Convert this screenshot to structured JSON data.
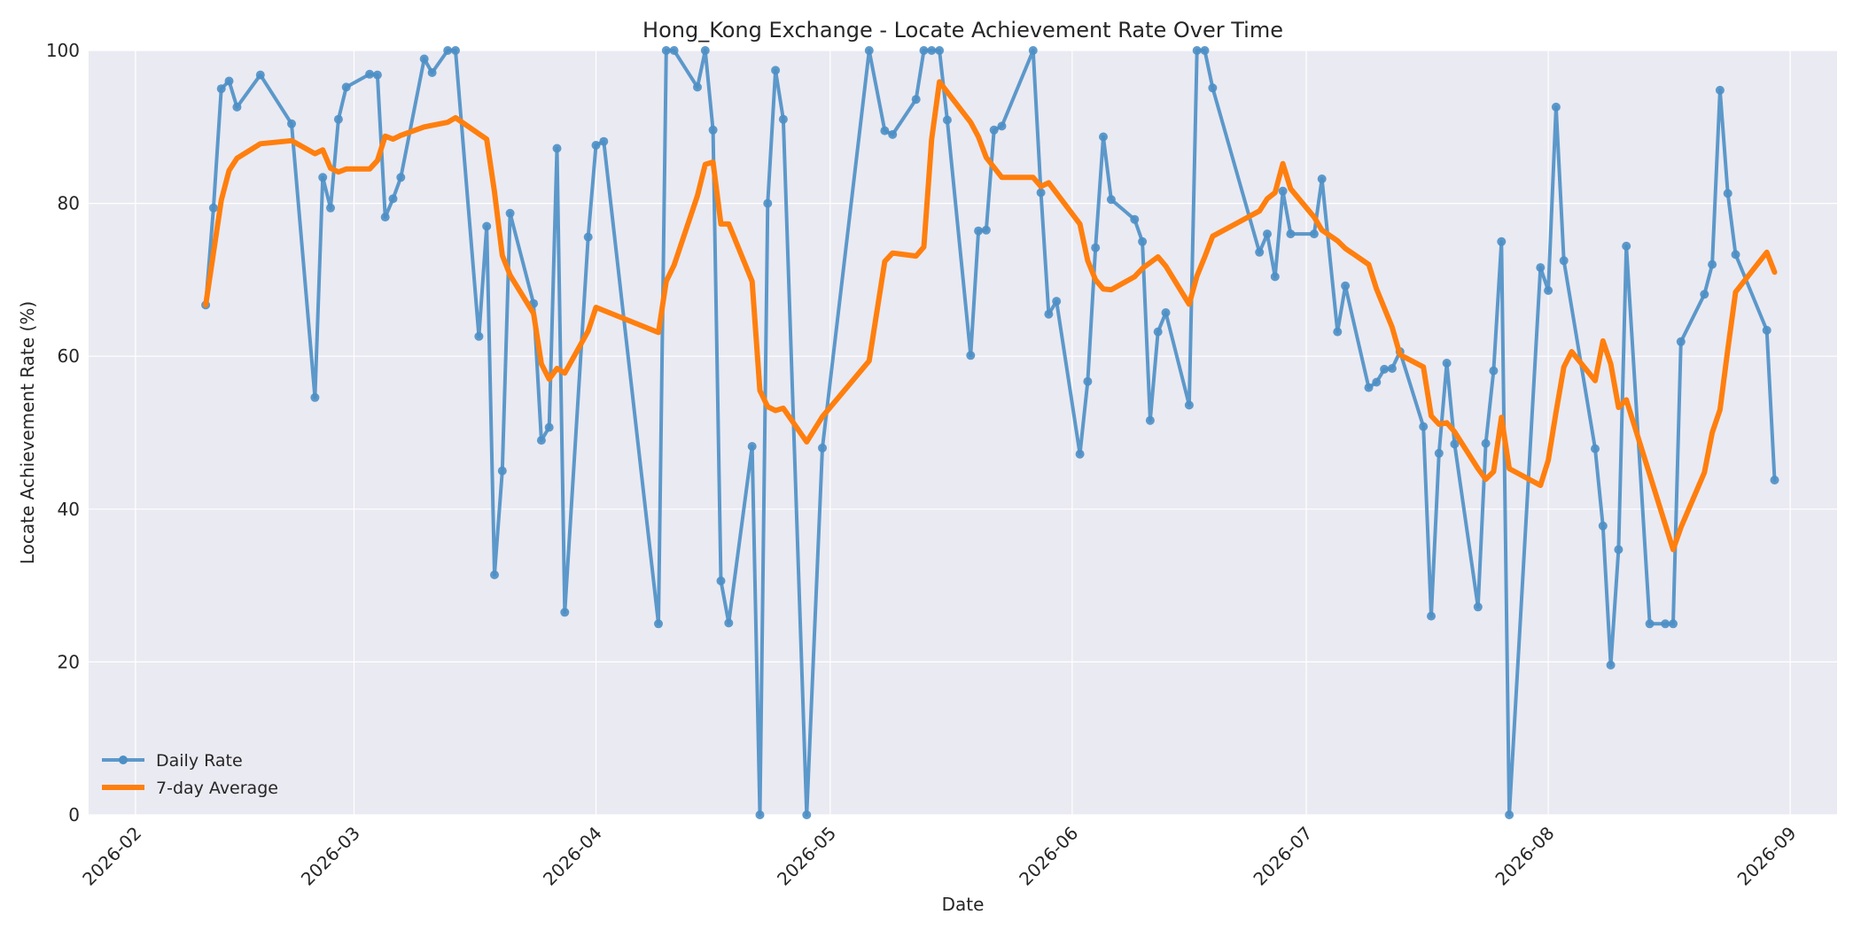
{
  "chart_data": {
    "type": "line",
    "title": "Hong_Kong Exchange - Locate Achievement Rate Over Time",
    "xlabel": "Date",
    "ylabel": "Locate Achievement Rate (%)",
    "xlim": [
      "2026-02-01",
      "2026-09-01"
    ],
    "ylim": [
      0,
      100
    ],
    "x_ticks": [
      "2026-02",
      "2026-03",
      "2026-04",
      "2026-05",
      "2026-06",
      "2026-07",
      "2026-08",
      "2026-09"
    ],
    "y_ticks": [
      0,
      20,
      40,
      60,
      80,
      100
    ],
    "grid": true,
    "legend_position": "lower-left",
    "colors": {
      "daily": "#4c8fc5",
      "average": "#ff7f0e",
      "plot_bg": "#eaeaf2",
      "grid": "#ffffff"
    },
    "series": [
      {
        "name": "Daily Rate",
        "markers": true,
        "points": [
          [
            "2026-02-10",
            66.7
          ],
          [
            "2026-02-11",
            79.4
          ],
          [
            "2026-02-12",
            95.0
          ],
          [
            "2026-02-13",
            96.0
          ],
          [
            "2026-02-14",
            92.6
          ],
          [
            "2026-02-17",
            96.8
          ],
          [
            "2026-02-21",
            90.4
          ],
          [
            "2026-02-24",
            54.6
          ],
          [
            "2026-02-25",
            83.4
          ],
          [
            "2026-02-26",
            79.4
          ],
          [
            "2026-02-27",
            91.0
          ],
          [
            "2026-02-28",
            95.2
          ],
          [
            "2026-03-03",
            96.9
          ],
          [
            "2026-03-04",
            96.8
          ],
          [
            "2026-03-05",
            78.2
          ],
          [
            "2026-03-06",
            80.6
          ],
          [
            "2026-03-07",
            83.4
          ],
          [
            "2026-03-10",
            98.9
          ],
          [
            "2026-03-11",
            97.1
          ],
          [
            "2026-03-13",
            100.0
          ],
          [
            "2026-03-14",
            100.0
          ],
          [
            "2026-03-17",
            62.6
          ],
          [
            "2026-03-18",
            77.0
          ],
          [
            "2026-03-19",
            31.4
          ],
          [
            "2026-03-20",
            45.0
          ],
          [
            "2026-03-21",
            78.7
          ],
          [
            "2026-03-24",
            66.9
          ],
          [
            "2026-03-25",
            49.0
          ],
          [
            "2026-03-26",
            50.7
          ],
          [
            "2026-03-27",
            87.2
          ],
          [
            "2026-03-28",
            26.5
          ],
          [
            "2026-03-31",
            75.6
          ],
          [
            "2026-04-01",
            87.6
          ],
          [
            "2026-04-02",
            88.1
          ],
          [
            "2026-04-09",
            25.0
          ],
          [
            "2026-04-10",
            100.0
          ],
          [
            "2026-04-11",
            100.0
          ],
          [
            "2026-04-14",
            95.2
          ],
          [
            "2026-04-15",
            100.0
          ],
          [
            "2026-04-16",
            89.6
          ],
          [
            "2026-04-17",
            30.6
          ],
          [
            "2026-04-18",
            25.1
          ],
          [
            "2026-04-21",
            48.2
          ],
          [
            "2026-04-22",
            0.0
          ],
          [
            "2026-04-23",
            80.0
          ],
          [
            "2026-04-24",
            97.4
          ],
          [
            "2026-04-25",
            91.0
          ],
          [
            "2026-04-28",
            0.0
          ],
          [
            "2026-04-30",
            48.0
          ],
          [
            "2026-05-06",
            100.0
          ],
          [
            "2026-05-08",
            89.5
          ],
          [
            "2026-05-09",
            89.0
          ],
          [
            "2026-05-12",
            93.6
          ],
          [
            "2026-05-13",
            100.0
          ],
          [
            "2026-05-14",
            100.0
          ],
          [
            "2026-05-15",
            100.0
          ],
          [
            "2026-05-16",
            90.9
          ],
          [
            "2026-05-19",
            60.1
          ],
          [
            "2026-05-20",
            76.4
          ],
          [
            "2026-05-21",
            76.5
          ],
          [
            "2026-05-22",
            89.6
          ],
          [
            "2026-05-23",
            90.1
          ],
          [
            "2026-05-27",
            100.0
          ],
          [
            "2026-05-28",
            81.4
          ],
          [
            "2026-05-29",
            65.5
          ],
          [
            "2026-05-30",
            67.2
          ],
          [
            "2026-06-02",
            47.2
          ],
          [
            "2026-06-03",
            56.7
          ],
          [
            "2026-06-04",
            74.2
          ],
          [
            "2026-06-05",
            88.7
          ],
          [
            "2026-06-06",
            80.5
          ],
          [
            "2026-06-09",
            77.9
          ],
          [
            "2026-06-10",
            75.0
          ],
          [
            "2026-06-11",
            51.6
          ],
          [
            "2026-06-12",
            63.2
          ],
          [
            "2026-06-13",
            65.7
          ],
          [
            "2026-06-16",
            53.6
          ],
          [
            "2026-06-17",
            100.0
          ],
          [
            "2026-06-18",
            100.0
          ],
          [
            "2026-06-19",
            95.1
          ],
          [
            "2026-06-25",
            73.6
          ],
          [
            "2026-06-26",
            76.0
          ],
          [
            "2026-06-27",
            70.4
          ],
          [
            "2026-06-28",
            81.6
          ],
          [
            "2026-06-29",
            76.0
          ],
          [
            "2026-07-02",
            76.0
          ],
          [
            "2026-07-03",
            83.2
          ],
          [
            "2026-07-05",
            63.2
          ],
          [
            "2026-07-06",
            69.2
          ],
          [
            "2026-07-09",
            55.9
          ],
          [
            "2026-07-10",
            56.6
          ],
          [
            "2026-07-11",
            58.3
          ],
          [
            "2026-07-12",
            58.4
          ],
          [
            "2026-07-13",
            60.6
          ],
          [
            "2026-07-16",
            50.8
          ],
          [
            "2026-07-17",
            26.0
          ],
          [
            "2026-07-18",
            47.3
          ],
          [
            "2026-07-19",
            59.1
          ],
          [
            "2026-07-20",
            48.5
          ],
          [
            "2026-07-23",
            27.2
          ],
          [
            "2026-07-24",
            48.6
          ],
          [
            "2026-07-25",
            58.1
          ],
          [
            "2026-07-26",
            75.0
          ],
          [
            "2026-07-27",
            0.0
          ],
          [
            "2026-07-31",
            71.6
          ],
          [
            "2026-08-01",
            68.6
          ],
          [
            "2026-08-02",
            92.6
          ],
          [
            "2026-08-03",
            72.5
          ],
          [
            "2026-08-07",
            47.9
          ],
          [
            "2026-08-08",
            37.8
          ],
          [
            "2026-08-09",
            19.6
          ],
          [
            "2026-08-10",
            34.7
          ],
          [
            "2026-08-11",
            74.4
          ],
          [
            "2026-08-14",
            25.0
          ],
          [
            "2026-08-16",
            25.0
          ],
          [
            "2026-08-17",
            25.0
          ],
          [
            "2026-08-18",
            61.9
          ],
          [
            "2026-08-21",
            68.1
          ],
          [
            "2026-08-22",
            72.0
          ],
          [
            "2026-08-23",
            94.8
          ],
          [
            "2026-08-24",
            81.3
          ],
          [
            "2026-08-25",
            73.3
          ],
          [
            "2026-08-29",
            63.4
          ],
          [
            "2026-08-30",
            43.8
          ]
        ]
      },
      {
        "name": "7-day Average",
        "markers": false,
        "points": [
          [
            "2026-02-10",
            66.7
          ],
          [
            "2026-02-12",
            80.4
          ],
          [
            "2026-02-13",
            84.3
          ],
          [
            "2026-02-14",
            85.9
          ],
          [
            "2026-02-17",
            87.8
          ],
          [
            "2026-02-21",
            88.2
          ],
          [
            "2026-02-24",
            86.5
          ],
          [
            "2026-02-25",
            87.0
          ],
          [
            "2026-02-26",
            84.6
          ],
          [
            "2026-02-27",
            84.1
          ],
          [
            "2026-02-28",
            84.5
          ],
          [
            "2026-03-03",
            84.5
          ],
          [
            "2026-03-04",
            85.6
          ],
          [
            "2026-03-05",
            88.8
          ],
          [
            "2026-03-06",
            88.4
          ],
          [
            "2026-03-07",
            88.9
          ],
          [
            "2026-03-10",
            90.0
          ],
          [
            "2026-03-13",
            90.6
          ],
          [
            "2026-03-14",
            91.2
          ],
          [
            "2026-03-17",
            89.1
          ],
          [
            "2026-03-18",
            88.4
          ],
          [
            "2026-03-19",
            81.5
          ],
          [
            "2026-03-20",
            73.2
          ],
          [
            "2026-03-21",
            70.6
          ],
          [
            "2026-03-24",
            65.6
          ],
          [
            "2026-03-25",
            59.0
          ],
          [
            "2026-03-26",
            57.0
          ],
          [
            "2026-03-27",
            58.4
          ],
          [
            "2026-03-28",
            57.8
          ],
          [
            "2026-03-31",
            63.3
          ],
          [
            "2026-04-01",
            66.4
          ],
          [
            "2026-04-09",
            63.1
          ],
          [
            "2026-04-10",
            69.8
          ],
          [
            "2026-04-11",
            71.9
          ],
          [
            "2026-04-14",
            81.0
          ],
          [
            "2026-04-15",
            85.1
          ],
          [
            "2026-04-16",
            85.4
          ],
          [
            "2026-04-17",
            77.3
          ],
          [
            "2026-04-18",
            77.3
          ],
          [
            "2026-04-21",
            69.8
          ],
          [
            "2026-04-22",
            55.5
          ],
          [
            "2026-04-23",
            53.4
          ],
          [
            "2026-04-24",
            52.9
          ],
          [
            "2026-04-25",
            53.2
          ],
          [
            "2026-04-28",
            48.8
          ],
          [
            "2026-04-30",
            52.1
          ],
          [
            "2026-05-06",
            59.4
          ],
          [
            "2026-05-08",
            72.4
          ],
          [
            "2026-05-09",
            73.5
          ],
          [
            "2026-05-12",
            73.1
          ],
          [
            "2026-05-13",
            74.3
          ],
          [
            "2026-05-14",
            88.4
          ],
          [
            "2026-05-15",
            95.9
          ],
          [
            "2026-05-19",
            90.6
          ],
          [
            "2026-05-20",
            88.7
          ],
          [
            "2026-05-21",
            86.0
          ],
          [
            "2026-05-23",
            83.4
          ],
          [
            "2026-05-27",
            83.4
          ],
          [
            "2026-05-28",
            82.2
          ],
          [
            "2026-05-29",
            82.7
          ],
          [
            "2026-06-02",
            77.3
          ],
          [
            "2026-06-03",
            72.5
          ],
          [
            "2026-06-04",
            70.0
          ],
          [
            "2026-06-05",
            68.8
          ],
          [
            "2026-06-06",
            68.7
          ],
          [
            "2026-06-09",
            70.4
          ],
          [
            "2026-06-10",
            71.5
          ],
          [
            "2026-06-12",
            73.0
          ],
          [
            "2026-06-13",
            71.8
          ],
          [
            "2026-06-16",
            66.8
          ],
          [
            "2026-06-17",
            70.5
          ],
          [
            "2026-06-18",
            73.0
          ],
          [
            "2026-06-19",
            75.7
          ],
          [
            "2026-06-25",
            79.0
          ],
          [
            "2026-06-26",
            80.6
          ],
          [
            "2026-06-27",
            81.4
          ],
          [
            "2026-06-28",
            85.2
          ],
          [
            "2026-06-29",
            81.9
          ],
          [
            "2026-07-02",
            78.2
          ],
          [
            "2026-07-03",
            76.5
          ],
          [
            "2026-07-05",
            75.1
          ],
          [
            "2026-07-06",
            74.1
          ],
          [
            "2026-07-09",
            72.0
          ],
          [
            "2026-07-10",
            68.8
          ],
          [
            "2026-07-12",
            63.8
          ],
          [
            "2026-07-13",
            60.2
          ],
          [
            "2026-07-16",
            58.6
          ],
          [
            "2026-07-17",
            52.2
          ],
          [
            "2026-07-18",
            51.1
          ],
          [
            "2026-07-19",
            51.3
          ],
          [
            "2026-07-20",
            50.1
          ],
          [
            "2026-07-23",
            45.3
          ],
          [
            "2026-07-24",
            43.9
          ],
          [
            "2026-07-25",
            44.9
          ],
          [
            "2026-07-26",
            52.0
          ],
          [
            "2026-07-27",
            45.3
          ],
          [
            "2026-07-31",
            43.1
          ],
          [
            "2026-08-01",
            46.4
          ],
          [
            "2026-08-02",
            52.7
          ],
          [
            "2026-08-03",
            58.6
          ],
          [
            "2026-08-04",
            60.6
          ],
          [
            "2026-08-07",
            56.8
          ],
          [
            "2026-08-08",
            62.0
          ],
          [
            "2026-08-09",
            59.0
          ],
          [
            "2026-08-10",
            53.3
          ],
          [
            "2026-08-11",
            54.3
          ],
          [
            "2026-08-17",
            34.7
          ],
          [
            "2026-08-18",
            37.6
          ],
          [
            "2026-08-21",
            44.8
          ],
          [
            "2026-08-22",
            50.0
          ],
          [
            "2026-08-23",
            53.0
          ],
          [
            "2026-08-24",
            60.9
          ],
          [
            "2026-08-25",
            68.4
          ],
          [
            "2026-08-29",
            73.6
          ],
          [
            "2026-08-30",
            71.0
          ]
        ]
      }
    ]
  }
}
